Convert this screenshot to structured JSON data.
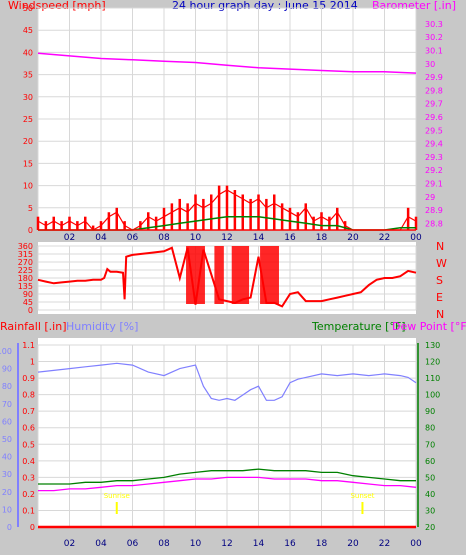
{
  "colors": {
    "background": "#c8c8c8",
    "plot_bg": "#ffffff",
    "wind": "#ff0000",
    "gust": "#ff0000",
    "wind_avg": "#008000",
    "barometer": "#ff00ff",
    "direction": "#ff0000",
    "rain": "#ff0000",
    "humidity": "#8080ff",
    "temperature": "#008000",
    "dewpoint": "#ff00ff",
    "title": "#0000c0",
    "axis": "#000080",
    "sun_marker": "#ffff00"
  },
  "chart_data": [
    {
      "type": "line",
      "title": "24 hour graph day : June 15 2014",
      "ylabel": "Windspeed [mph]",
      "y2label": "Barometer [.in]",
      "x_ticks": [
        "02",
        "04",
        "06",
        "08",
        "10",
        "12",
        "14",
        "16",
        "18",
        "20",
        "22",
        "00"
      ],
      "ylim": [
        0,
        50
      ],
      "y_ticks": [
        0,
        5,
        10,
        15,
        20,
        25,
        30,
        35,
        40,
        45,
        50
      ],
      "y2lim": [
        28.75,
        30.42
      ],
      "y2_ticks": [
        "28.8",
        "28.9",
        "29",
        "29.1",
        "29.2",
        "29.3",
        "29.4",
        "29.5",
        "29.6",
        "29.7",
        "29.8",
        "29.9",
        "30",
        "30.1",
        "30.2",
        "30.3"
      ],
      "series": [
        {
          "name": "Windspeed",
          "color_key": "wind",
          "x": [
            0,
            0.5,
            1,
            1.5,
            2,
            2.5,
            3,
            3.5,
            4,
            4.5,
            5,
            5.5,
            6,
            6.5,
            7,
            7.5,
            8,
            8.5,
            9,
            9.5,
            10,
            10.5,
            11,
            11.5,
            12,
            12.5,
            13,
            13.5,
            14,
            14.5,
            15,
            15.5,
            16,
            16.5,
            17,
            17.5,
            18,
            18.5,
            19,
            19.5,
            20,
            20.5,
            21,
            21.5,
            22,
            22.5,
            23,
            23.5,
            24
          ],
          "values": [
            2,
            1,
            2,
            1,
            2,
            1,
            2,
            0,
            1,
            3,
            4,
            1,
            0,
            1,
            3,
            2,
            3,
            4,
            5,
            4,
            6,
            5,
            6,
            8,
            9,
            8,
            7,
            6,
            7,
            5,
            6,
            5,
            4,
            3,
            5,
            2,
            3,
            2,
            4,
            1,
            0,
            0,
            0,
            0,
            0,
            0,
            0,
            3,
            2
          ]
        },
        {
          "name": "Gust",
          "color_key": "gust",
          "x": [
            0,
            0.5,
            1,
            1.5,
            2,
            2.5,
            3,
            3.5,
            4,
            4.5,
            5,
            5.5,
            6,
            6.5,
            7,
            7.5,
            8,
            8.5,
            9,
            9.5,
            10,
            10.5,
            11,
            11.5,
            12,
            12.5,
            13,
            13.5,
            14,
            14.5,
            15,
            15.5,
            16,
            16.5,
            17,
            17.5,
            18,
            18.5,
            19,
            19.5,
            20,
            20.5,
            21,
            21.5,
            22,
            22.5,
            23,
            23.5,
            24
          ],
          "values": [
            3,
            2,
            3,
            2,
            3,
            2,
            3,
            1,
            2,
            4,
            5,
            2,
            0,
            2,
            4,
            3,
            5,
            6,
            7,
            6,
            8,
            7,
            8,
            10,
            10,
            9,
            8,
            7,
            8,
            7,
            8,
            6,
            5,
            4,
            6,
            3,
            4,
            3,
            5,
            2,
            0,
            0,
            0,
            0,
            0,
            0,
            0,
            5,
            3
          ]
        },
        {
          "name": "Average",
          "color_key": "wind_avg",
          "x": [
            0,
            2,
            4,
            6,
            7,
            8,
            9,
            10,
            11,
            12,
            13,
            14,
            15,
            16,
            17,
            18,
            19,
            20,
            22,
            23,
            24
          ],
          "values": [
            0,
            0,
            0,
            0,
            0.5,
            1,
            1.5,
            2,
            2.5,
            3,
            3,
            3,
            2.5,
            2,
            1.5,
            1,
            1,
            0,
            0,
            0.5,
            0.5
          ]
        },
        {
          "name": "Barometer",
          "color_key": "barometer",
          "axis": "right",
          "x": [
            0,
            2,
            4,
            6,
            8,
            10,
            12,
            14,
            16,
            18,
            20,
            22,
            24
          ],
          "values": [
            30.08,
            30.06,
            30.04,
            30.03,
            30.02,
            30.01,
            29.99,
            29.97,
            29.96,
            29.95,
            29.94,
            29.94,
            29.93
          ]
        }
      ]
    },
    {
      "type": "line",
      "ylabel": "Wind direction",
      "ylim": [
        0,
        360
      ],
      "y_ticks": [
        0,
        45,
        90,
        135,
        180,
        225,
        270,
        315,
        360
      ],
      "y2_ticks": [
        "N",
        "W",
        "S",
        "E",
        "N"
      ],
      "series": [
        {
          "name": "Wind direction",
          "color_key": "direction",
          "x": [
            0,
            0.5,
            1,
            1.5,
            2,
            2.5,
            3,
            3.5,
            4,
            4.2,
            4.4,
            4.6,
            5,
            5.4,
            5.5,
            5.6,
            6,
            7,
            8,
            8.5,
            9,
            9.5,
            10,
            10.5,
            11,
            11.5,
            12,
            12.5,
            13,
            13.5,
            14,
            14.5,
            15,
            15.5,
            16,
            16.5,
            17,
            17.5,
            18,
            18.5,
            19,
            19.5,
            20,
            20.5,
            21,
            21.5,
            22,
            22.5,
            23,
            23.5,
            24
          ],
          "values": [
            170,
            160,
            150,
            155,
            160,
            165,
            165,
            170,
            170,
            180,
            230,
            215,
            215,
            210,
            60,
            300,
            310,
            320,
            330,
            350,
            180,
            350,
            30,
            340,
            200,
            60,
            50,
            40,
            60,
            70,
            300,
            40,
            40,
            20,
            90,
            100,
            50,
            50,
            50,
            60,
            70,
            80,
            90,
            100,
            140,
            170,
            180,
            180,
            190,
            220,
            210
          ]
        }
      ]
    },
    {
      "type": "line",
      "ylabel": "Rainfall [.in]",
      "y3label": "Humidity [%]",
      "y2label": "Temperature [°F]",
      "y4label": "Dew Point [°F]",
      "ylim": [
        0,
        1.1
      ],
      "y_ticks": [
        "0",
        "0.1",
        "0.2",
        "0.3",
        "0.4",
        "0.5",
        "0.6",
        "0.7",
        "0.8",
        "0.9",
        "1",
        "1.1"
      ],
      "y3_ticks": [
        "0",
        "10",
        "20",
        "30",
        "40",
        "50",
        "60",
        "70",
        "80",
        "90",
        "100"
      ],
      "y2lim": [
        20,
        130
      ],
      "y2_ticks": [
        "20",
        "30",
        "40",
        "50",
        "60",
        "70",
        "80",
        "90",
        "100",
        "110",
        "120",
        "130"
      ],
      "sun_labels": [
        "Sunrise",
        "Sunset"
      ],
      "sun_times": [
        5,
        20.6
      ],
      "series": [
        {
          "name": "Rainfall",
          "color_key": "rain",
          "x": [
            0,
            24
          ],
          "values": [
            0,
            0
          ]
        },
        {
          "name": "Humidity",
          "color_key": "humidity",
          "axis": "humidity",
          "x": [
            0,
            1,
            2,
            3,
            4,
            5,
            6,
            7,
            8,
            9,
            10,
            10.5,
            11,
            11.5,
            12,
            12.5,
            13,
            13.5,
            14,
            14.5,
            15,
            15.5,
            16,
            16.5,
            17,
            18,
            19,
            20,
            21,
            22,
            23,
            23.5,
            24
          ],
          "values": [
            88,
            89,
            90,
            91,
            92,
            93,
            92,
            88,
            86,
            90,
            92,
            80,
            73,
            72,
            73,
            72,
            75,
            78,
            80,
            72,
            72,
            74,
            82,
            84,
            85,
            87,
            86,
            87,
            86,
            87,
            86,
            85,
            82
          ]
        },
        {
          "name": "Temperature",
          "color_key": "temperature",
          "axis": "right",
          "x": [
            0,
            1,
            2,
            3,
            4,
            5,
            6,
            7,
            8,
            9,
            10,
            11,
            12,
            13,
            14,
            15,
            16,
            17,
            18,
            19,
            20,
            21,
            22,
            23,
            24
          ],
          "values": [
            46,
            46,
            46,
            47,
            47,
            48,
            48,
            49,
            50,
            52,
            53,
            54,
            54,
            54,
            55,
            54,
            54,
            54,
            53,
            53,
            51,
            50,
            49,
            48,
            48
          ]
        },
        {
          "name": "Dew Point",
          "color_key": "dewpoint",
          "axis": "right",
          "x": [
            0,
            1,
            2,
            3,
            4,
            5,
            6,
            7,
            8,
            9,
            10,
            11,
            12,
            13,
            14,
            15,
            16,
            17,
            18,
            19,
            20,
            21,
            22,
            23,
            24
          ],
          "values": [
            42,
            42,
            43,
            43,
            44,
            45,
            45,
            46,
            47,
            48,
            49,
            49,
            50,
            50,
            50,
            49,
            49,
            49,
            48,
            48,
            47,
            46,
            45,
            45,
            44
          ]
        }
      ]
    }
  ]
}
